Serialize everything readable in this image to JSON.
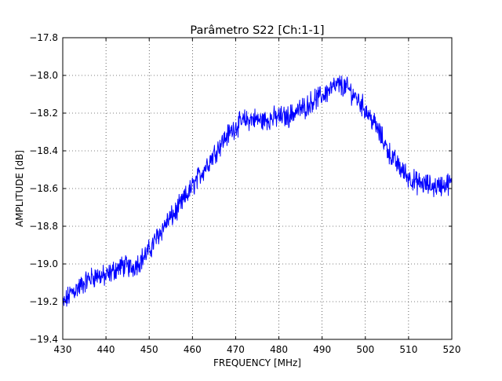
{
  "chart_data": {
    "type": "line",
    "title": "Parâmetro S22 [Ch:1-1]",
    "xlabel": "FREQUENCY [MHz]",
    "ylabel": "AMPLITUDE [dB]",
    "xlim": [
      430,
      520
    ],
    "ylim": [
      -19.4,
      -17.8
    ],
    "xticks": [
      "430",
      "440",
      "450",
      "460",
      "470",
      "480",
      "490",
      "500",
      "510",
      "520"
    ],
    "yticks": [
      "−17.8",
      "−18.0",
      "−18.2",
      "−18.4",
      "−18.6",
      "−18.8",
      "−19.0",
      "−19.2",
      "−19.4"
    ],
    "grid": true,
    "grid_style": "dotted",
    "series": [
      {
        "color": "#0000ff",
        "x": [
          430,
          432,
          434,
          436,
          438,
          440,
          442,
          444,
          446,
          448,
          450,
          452,
          454,
          456,
          458,
          460,
          462,
          464,
          466,
          468,
          470,
          472,
          474,
          476,
          478,
          480,
          482,
          484,
          486,
          488,
          490,
          492,
          494,
          496,
          498,
          500,
          502,
          504,
          506,
          508,
          510,
          512,
          514,
          516,
          518,
          520
        ],
        "y": [
          -19.22,
          -19.15,
          -19.12,
          -19.08,
          -19.06,
          -19.07,
          -19.03,
          -19.01,
          -19.02,
          -18.98,
          -18.93,
          -18.85,
          -18.78,
          -18.73,
          -18.66,
          -18.59,
          -18.52,
          -18.45,
          -18.38,
          -18.32,
          -18.27,
          -18.24,
          -18.23,
          -18.24,
          -18.23,
          -18.22,
          -18.22,
          -18.19,
          -18.17,
          -18.13,
          -18.11,
          -18.07,
          -18.05,
          -18.07,
          -18.12,
          -18.18,
          -18.25,
          -18.34,
          -18.43,
          -18.49,
          -18.54,
          -18.57,
          -18.58,
          -18.59,
          -18.58,
          -18.57
        ]
      }
    ]
  }
}
